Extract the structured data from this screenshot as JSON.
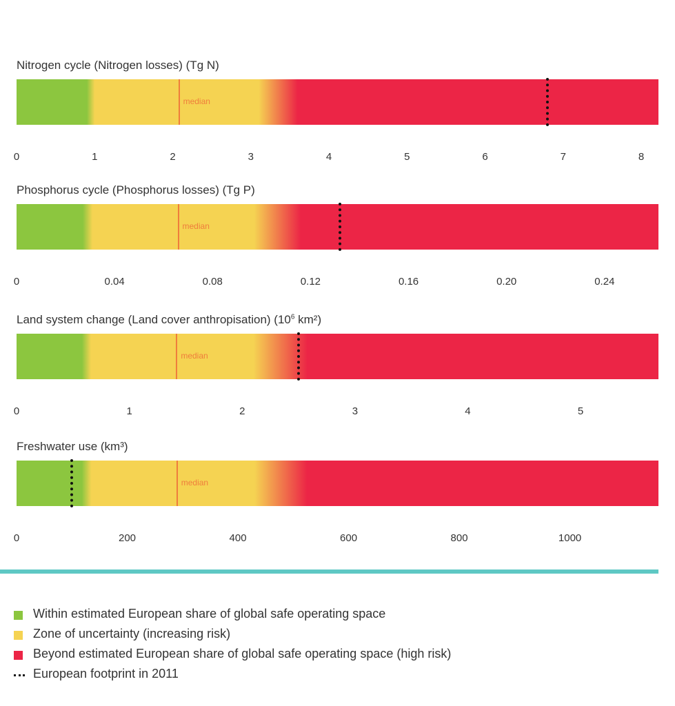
{
  "colors": {
    "safe": "#8cc63f",
    "uncertain": "#f5d352",
    "high_risk": "#ec2546",
    "median": "#ef7d3c",
    "footprint": "#111111",
    "divider": "#5ec8c4"
  },
  "chart_data": [
    {
      "type": "bar",
      "title": "Nitrogen cycle (Nitrogen losses) (Tg N)",
      "title_main": "Nitrogen cycle (Nitrogen losses) (Tg N)",
      "title_sup": "",
      "title_end": "",
      "xlim": [
        0,
        8.22
      ],
      "ticks": [
        "0",
        "1",
        "2",
        "3",
        "4",
        "5",
        "6",
        "7",
        "8"
      ],
      "tick_values": [
        0,
        1,
        2,
        3,
        4,
        5,
        6,
        7,
        8
      ],
      "zones": {
        "safe_end": 0.9,
        "uncertain_start": 1.0,
        "uncertain_end": 3.1,
        "high_start": 3.6
      },
      "median": 2.08,
      "median_label": "median",
      "footprint": 6.8
    },
    {
      "type": "bar",
      "title": "Phosphorus cycle (Phosphorus losses) (Tg P)",
      "title_main": "Phosphorus cycle (Phosphorus losses) (Tg P)",
      "title_sup": "",
      "title_end": "",
      "xlim": [
        0,
        0.262
      ],
      "ticks": [
        "0",
        "0.04",
        "0.08",
        "0.12",
        "0.16",
        "0.20",
        "0.24"
      ],
      "tick_values": [
        0,
        0.04,
        0.08,
        0.12,
        0.16,
        0.2,
        0.24
      ],
      "zones": {
        "safe_end": 0.027,
        "uncertain_start": 0.031,
        "uncertain_end": 0.097,
        "high_start": 0.116
      },
      "median": 0.066,
      "median_label": "median",
      "footprint": 0.132
    },
    {
      "type": "bar",
      "title": "Land system change (Land cover anthropisation) (10⁶ km²)",
      "title_main": "Land system change (Land cover anthropisation) (10",
      "title_sup": "6",
      "title_end": " km²)",
      "xlim": [
        0,
        5.69
      ],
      "ticks": [
        "0",
        "1",
        "2",
        "3",
        "4",
        "5"
      ],
      "tick_values": [
        0,
        1,
        2,
        3,
        4,
        5
      ],
      "zones": {
        "safe_end": 0.58,
        "uncertain_start": 0.66,
        "uncertain_end": 2.1,
        "high_start": 2.58
      },
      "median": 1.42,
      "median_label": "median",
      "footprint": 2.5
    },
    {
      "type": "bar",
      "title": "Freshwater use (km³)",
      "title_main": "Freshwater use (km³)",
      "title_sup": "",
      "title_end": "",
      "xlim": [
        0,
        1160
      ],
      "ticks": [
        "0",
        "200",
        "400",
        "600",
        "800",
        "1000"
      ],
      "tick_values": [
        0,
        200,
        400,
        600,
        800,
        1000
      ],
      "zones": {
        "safe_end": 118,
        "uncertain_start": 135,
        "uncertain_end": 430,
        "high_start": 525
      },
      "median": 290,
      "median_label": "median",
      "footprint": 100
    }
  ],
  "legend": [
    {
      "kind": "safe",
      "label": "Within estimated European share of global safe operating space"
    },
    {
      "kind": "uncertain",
      "label": "Zone of uncertainty (increasing risk)"
    },
    {
      "kind": "high_risk",
      "label": "Beyond estimated European share of global safe operating space (high risk)"
    },
    {
      "kind": "footprint",
      "label": "European footprint in 2011"
    }
  ]
}
